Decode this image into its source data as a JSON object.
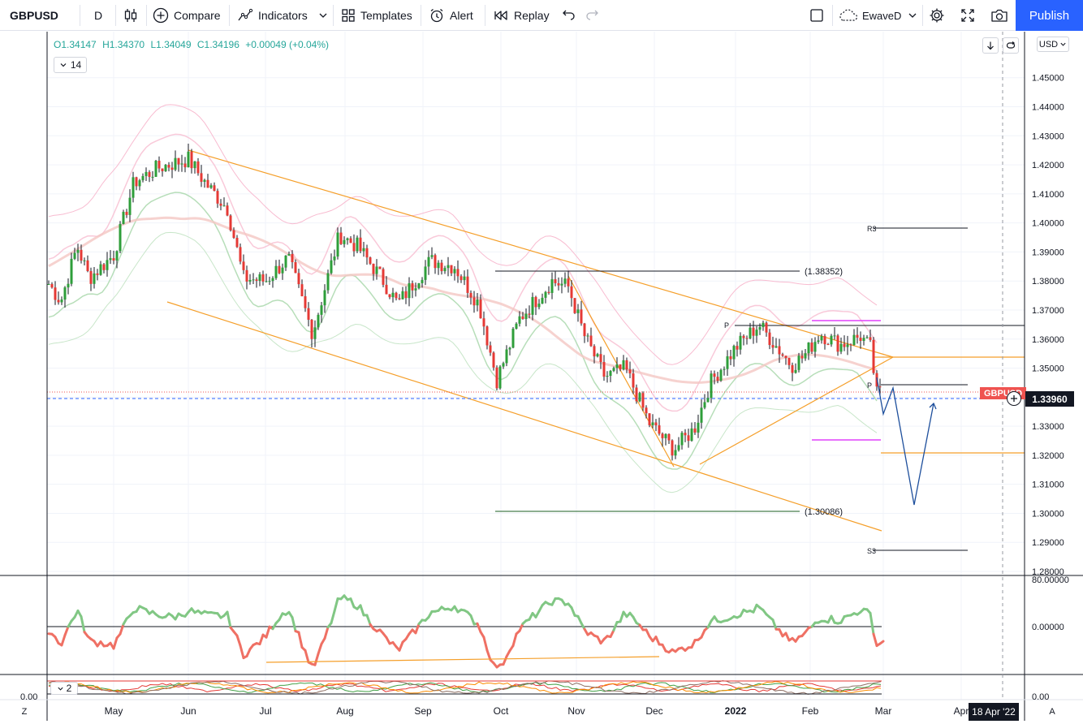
{
  "toolbar": {
    "symbol": "GBPUSD",
    "interval": "D",
    "compare_label": "Compare",
    "indicators_label": "Indicators",
    "templates_label": "Templates",
    "alert_label": "Alert",
    "replay_label": "Replay",
    "layout_name": "EwaveD",
    "publish_label": "Publish"
  },
  "legend": {
    "open": "O1.34147",
    "high": "H1.34370",
    "low": "L1.34049",
    "close": "C1.34196",
    "change": "+0.00049 (+0.04%)",
    "indicator_count": "14",
    "sub_indicator_count": "2",
    "colors": {
      "up": "#26a69a",
      "down": "#ef5350"
    }
  },
  "price_axis": {
    "currency": "USD",
    "ticks": [
      "1.45000",
      "1.44000",
      "1.43000",
      "1.42000",
      "1.41000",
      "1.40000",
      "1.39000",
      "1.38000",
      "1.37000",
      "1.36000",
      "1.35000",
      "1.34000",
      "1.33000",
      "1.32000",
      "1.31000",
      "1.30000",
      "1.29000",
      "1.28000"
    ],
    "current_price": "1.33960",
    "symbol_badge": "GBPUSD",
    "symbol_badge_price": "1.34196"
  },
  "osc_axis": {
    "ticks": [
      "80.00000",
      "0.00000"
    ]
  },
  "sub_axis": {
    "left_label": "0.00",
    "right_label": "0.00"
  },
  "time_axis": {
    "labels": [
      "May",
      "Jun",
      "Jul",
      "Aug",
      "Sep",
      "Oct",
      "Nov",
      "Dec",
      "2022",
      "Feb",
      "Mar",
      "Apr"
    ],
    "crosshair_date": "18 Apr '22",
    "left_button": "Z",
    "right_button": "A"
  },
  "annotations": {
    "fib_high": "(1.38352)",
    "fib_low": "(1.30086)",
    "r3": "R3",
    "s3": "S3",
    "p": "P"
  },
  "chart_data": {
    "type": "candlestick",
    "symbol": "GBPUSD",
    "interval": "D",
    "x_range": [
      "2021-04",
      "2022-04"
    ],
    "y_range": [
      1.28,
      1.45
    ],
    "monthly_path": [
      {
        "month": "Apr 2021",
        "close": 1.378
      },
      {
        "month": "May 2021",
        "close": 1.419
      },
      {
        "month": "Jun 2021",
        "close": 1.383
      },
      {
        "month": "Jul 2021",
        "close": 1.39
      },
      {
        "month": "Aug 2021",
        "close": 1.376
      },
      {
        "month": "Sep 2021",
        "close": 1.348
      },
      {
        "month": "Oct 2021",
        "close": 1.369
      },
      {
        "month": "Nov 2021",
        "close": 1.33
      },
      {
        "month": "Dec 2021",
        "close": 1.353
      },
      {
        "month": "Jan 2022",
        "close": 1.345
      },
      {
        "month": "Feb 2022",
        "close": 1.341
      }
    ],
    "last_price": 1.3396,
    "fib_levels": [
      1.38352,
      1.30086
    ],
    "pivot_levels": {
      "r3": 1.3985,
      "p": 1.3645,
      "s3": 1.2875
    }
  }
}
